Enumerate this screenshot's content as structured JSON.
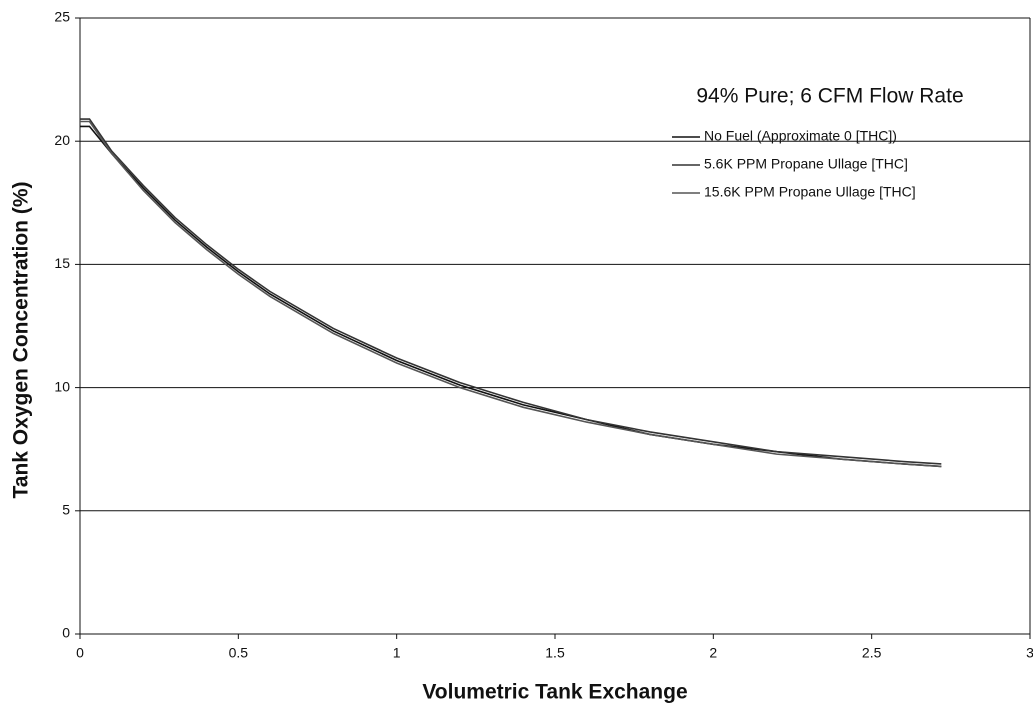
{
  "chart_data": {
    "type": "line",
    "title": "94% Pure; 6 CFM Flow Rate",
    "x_label": "Volumetric Tank Exchange",
    "y_label": "Tank Oxygen Concentration (%)",
    "x": [
      0,
      0.03,
      0.1,
      0.2,
      0.3,
      0.4,
      0.5,
      0.6,
      0.8,
      1.0,
      1.2,
      1.4,
      1.6,
      1.8,
      2.0,
      2.2,
      2.4,
      2.6,
      2.72
    ],
    "series": [
      {
        "name": "No Fuel (Approximate 0 [THC])",
        "color": "#111111",
        "values": [
          20.6,
          20.6,
          19.5,
          18.1,
          16.8,
          15.7,
          14.7,
          13.8,
          12.3,
          11.1,
          10.1,
          9.3,
          8.7,
          8.1,
          7.7,
          7.4,
          7.1,
          6.9,
          6.8
        ]
      },
      {
        "name": "5.6K PPM Propane Ullage [THC]",
        "color": "#333333",
        "values": [
          20.9,
          20.9,
          19.6,
          18.2,
          16.9,
          15.8,
          14.8,
          13.9,
          12.4,
          11.2,
          10.2,
          9.4,
          8.7,
          8.2,
          7.8,
          7.4,
          7.2,
          7.0,
          6.9
        ]
      },
      {
        "name": "15.6K PPM Propane Ullage [THC]",
        "color": "#555555",
        "values": [
          20.8,
          20.8,
          19.5,
          18.0,
          16.7,
          15.6,
          14.6,
          13.7,
          12.2,
          11.0,
          10.0,
          9.2,
          8.6,
          8.1,
          7.7,
          7.3,
          7.1,
          6.9,
          6.8
        ]
      }
    ],
    "xlim": [
      0,
      3
    ],
    "xticks": [
      0,
      0.5,
      1,
      1.5,
      2,
      2.5,
      3
    ],
    "ylim": [
      0,
      25
    ],
    "yticks": [
      0,
      5,
      10,
      15,
      20,
      25
    ],
    "grid": true
  }
}
